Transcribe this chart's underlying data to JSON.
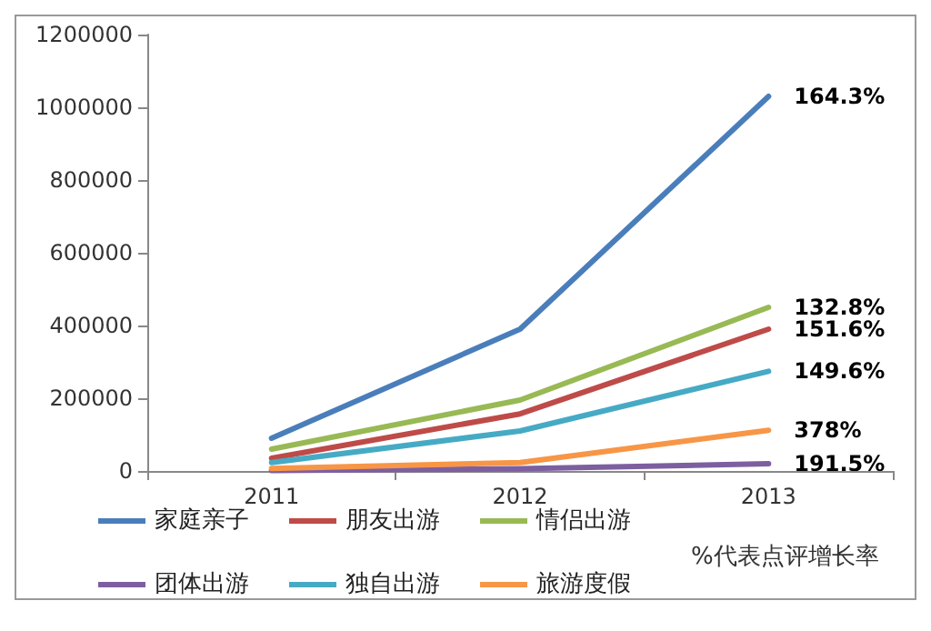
{
  "chart_data": {
    "type": "line",
    "categories": [
      "2011",
      "2012",
      "2013"
    ],
    "series": [
      {
        "name": "家庭亲子",
        "color": "#4a7ebb",
        "values": [
          90000,
          390000,
          1030000
        ]
      },
      {
        "name": "朋友出游",
        "color": "#be4b48",
        "values": [
          35000,
          157000,
          390000
        ]
      },
      {
        "name": "情侣出游",
        "color": "#98b954",
        "values": [
          60000,
          195000,
          450000
        ]
      },
      {
        "name": "团体出游",
        "color": "#7d5fa0",
        "values": [
          1000,
          6000,
          20000
        ]
      },
      {
        "name": "独自出游",
        "color": "#46aac5",
        "values": [
          23000,
          110000,
          274000
        ]
      },
      {
        "name": "旅游度假",
        "color": "#f79646",
        "values": [
          7000,
          23000,
          112000
        ]
      }
    ],
    "ylim": [
      0,
      1200000
    ],
    "yticks": [
      0,
      200000,
      400000,
      600000,
      800000,
      1000000,
      1200000
    ],
    "annotations": [
      "%代表点评增长率",
      {
        "text": "164.3%",
        "x": "2013",
        "y": 1030000
      },
      {
        "text": "132.8%",
        "x": "2013",
        "y": 450000
      },
      {
        "text": "151.6%",
        "x": "2013",
        "y": 390000
      },
      {
        "text": "149.6%",
        "x": "2013",
        "y": 274000
      },
      {
        "text": "378%",
        "x": "2013",
        "y": 112000
      },
      {
        "text": "191.5%",
        "x": "2013",
        "y": 20000
      }
    ],
    "legend": "bottom",
    "grid": false,
    "marker": "none",
    "line_style": "solid"
  }
}
